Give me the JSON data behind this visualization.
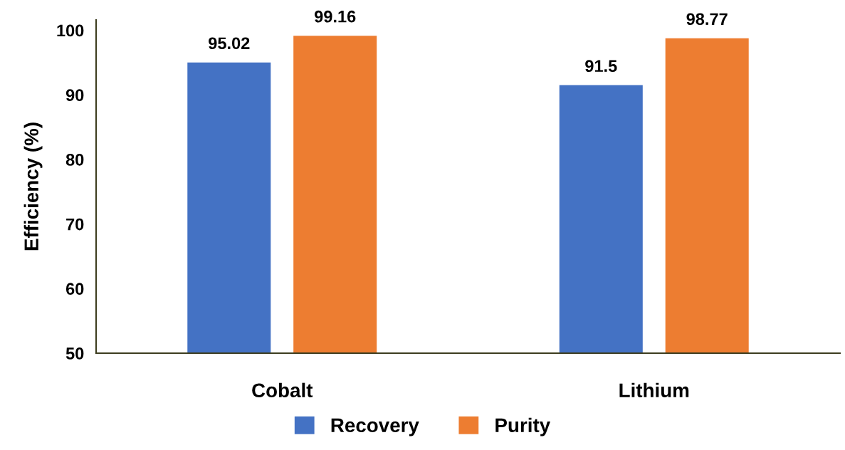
{
  "chart_data": {
    "type": "bar",
    "ylabel": "Efficiency (%)",
    "categories": [
      "Cobalt",
      "Lithium"
    ],
    "series": [
      {
        "name": "Recovery",
        "color": "#4472c4",
        "values": [
          95.02,
          91.5
        ]
      },
      {
        "name": "Purity",
        "color": "#ed7d31",
        "values": [
          99.16,
          98.77
        ]
      }
    ],
    "ylim": [
      50,
      101.6
    ],
    "yticks": [
      50,
      60,
      70,
      80,
      90,
      100
    ],
    "data_labels": true,
    "legend": "bottom",
    "grid": false
  }
}
